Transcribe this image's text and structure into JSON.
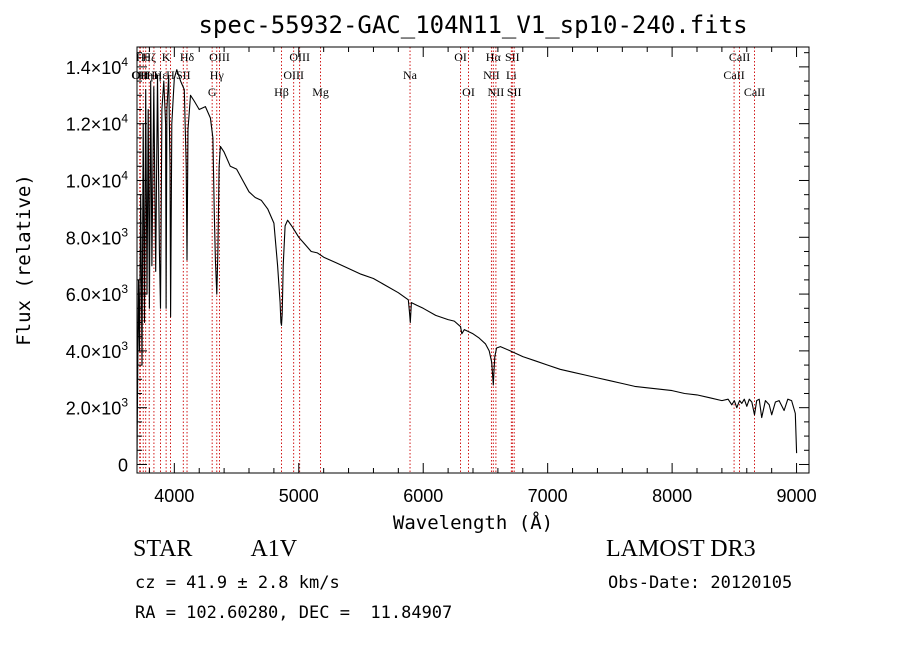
{
  "chart_data": {
    "type": "line",
    "title": "spec-55932-GAC_104N11_V1_sp10-240.fits",
    "xlabel": "Wavelength (Å)",
    "ylabel": "Flux (relative)",
    "xlim": [
      3700,
      9100
    ],
    "ylim": [
      -300,
      14700
    ],
    "x_ticks": [
      4000,
      5000,
      6000,
      7000,
      8000,
      9000
    ],
    "x_tick_labels": [
      "4000",
      "5000",
      "6000",
      "7000",
      "8000",
      "9000"
    ],
    "y_ticks": [
      0,
      2000,
      4000,
      6000,
      8000,
      10000,
      12000,
      14000
    ],
    "y_tick_labels": [
      {
        "mant": "0",
        "exp": ""
      },
      {
        "mant": "2.0×10",
        "exp": "3"
      },
      {
        "mant": "4.0×10",
        "exp": "3"
      },
      {
        "mant": "6.0×10",
        "exp": "3"
      },
      {
        "mant": "8.0×10",
        "exp": "3"
      },
      {
        "mant": "1.0×10",
        "exp": "4"
      },
      {
        "mant": "1.2×10",
        "exp": "4"
      },
      {
        "mant": "1.4×10",
        "exp": "4"
      }
    ],
    "series": [
      {
        "name": "spectrum",
        "x": [
          3700,
          3705,
          3712,
          3720,
          3730,
          3740,
          3750,
          3760,
          3770,
          3780,
          3790,
          3800,
          3810,
          3820,
          3835,
          3850,
          3865,
          3880,
          3889,
          3900,
          3915,
          3930,
          3934,
          3940,
          3955,
          3965,
          3970,
          3980,
          4000,
          4020,
          4050,
          4080,
          4095,
          4102,
          4110,
          4130,
          4160,
          4200,
          4250,
          4290,
          4310,
          4320,
          4330,
          4341,
          4350,
          4360,
          4370,
          4400,
          4450,
          4500,
          4550,
          4600,
          4650,
          4700,
          4750,
          4800,
          4830,
          4850,
          4856,
          4861,
          4867,
          4875,
          4890,
          4910,
          4950,
          5000,
          5050,
          5100,
          5150,
          5200,
          5300,
          5400,
          5500,
          5600,
          5700,
          5800,
          5880,
          5890,
          5896,
          5905,
          5950,
          6000,
          6100,
          6200,
          6250,
          6300,
          6310,
          6330,
          6400,
          6450,
          6500,
          6530,
          6550,
          6560,
          6563,
          6566,
          6575,
          6590,
          6620,
          6700,
          6800,
          6900,
          7000,
          7100,
          7200,
          7300,
          7400,
          7500,
          7600,
          7700,
          7800,
          7900,
          8000,
          8100,
          8200,
          8300,
          8400,
          8450,
          8480,
          8500,
          8520,
          8542,
          8560,
          8580,
          8600,
          8620,
          8640,
          8662,
          8680,
          8700,
          8720,
          8750,
          8780,
          8800,
          8830,
          8860,
          8900,
          8930,
          8960,
          8990,
          9000
        ],
        "y": [
          200,
          2800,
          6500,
          4000,
          9500,
          3500,
          12000,
          5000,
          13200,
          6000,
          12500,
          5500,
          13500,
          7000,
          13300,
          6800,
          13700,
          7500,
          5500,
          12500,
          13500,
          12000,
          5500,
          12500,
          13700,
          10500,
          5200,
          12000,
          13600,
          13900,
          13500,
          13200,
          10500,
          7200,
          11800,
          13000,
          12800,
          12500,
          12600,
          12200,
          11500,
          9000,
          7200,
          6000,
          7500,
          10500,
          11200,
          11000,
          10500,
          10400,
          10000,
          9600,
          9400,
          9300,
          9000,
          8500,
          7000,
          5700,
          5000,
          4900,
          5300,
          7000,
          8400,
          8600,
          8350,
          8000,
          7750,
          7500,
          7450,
          7300,
          7100,
          6900,
          6700,
          6550,
          6300,
          6050,
          5800,
          5350,
          5000,
          5700,
          5600,
          5500,
          5250,
          5100,
          5050,
          4850,
          4600,
          4750,
          4600,
          4450,
          4250,
          4000,
          3600,
          3000,
          2800,
          3100,
          3800,
          4100,
          4150,
          4000,
          3800,
          3650,
          3500,
          3350,
          3250,
          3150,
          3050,
          2950,
          2850,
          2750,
          2700,
          2650,
          2600,
          2500,
          2450,
          2350,
          2250,
          2300,
          2100,
          2250,
          2000,
          2250,
          2150,
          2300,
          2050,
          2300,
          2200,
          1750,
          2250,
          2300,
          1650,
          2250,
          2100,
          1750,
          2200,
          2250,
          1900,
          2300,
          2250,
          1800,
          400
        ]
      }
    ],
    "lines": [
      {
        "wave": 3722,
        "label": "OII",
        "row": 2
      },
      {
        "wave": 3727,
        "label": "OII",
        "row": 2
      },
      {
        "wave": 3750,
        "label": "Hθ",
        "row": 1
      },
      {
        "wave": 3770,
        "label": "Hη",
        "row": 2
      },
      {
        "wave": 3798,
        "label": "Hζ",
        "row": 1
      },
      {
        "wave": 3836,
        "label": "Hη",
        "row": 2
      },
      {
        "wave": 3889,
        "label": "Hε",
        "row": 2
      },
      {
        "wave": 3934,
        "label": "K",
        "row": 1
      },
      {
        "wave": 3969,
        "label": "H",
        "row": 2
      },
      {
        "wave": 4072,
        "label": "SII",
        "row": 2
      },
      {
        "wave": 4102,
        "label": "Hδ",
        "row": 1
      },
      {
        "wave": 4304,
        "label": "G",
        "row": 3
      },
      {
        "wave": 4341,
        "label": "Hγ",
        "row": 2
      },
      {
        "wave": 4363,
        "label": "OIII",
        "row": 1
      },
      {
        "wave": 4861,
        "label": "Hβ",
        "row": 3
      },
      {
        "wave": 4959,
        "label": "OIII",
        "row": 2
      },
      {
        "wave": 5007,
        "label": "OIII",
        "row": 1
      },
      {
        "wave": 5175,
        "label": "Mg",
        "row": 3
      },
      {
        "wave": 5894,
        "label": "Na",
        "row": 2
      },
      {
        "wave": 6300,
        "label": "OI",
        "row": 1
      },
      {
        "wave": 6364,
        "label": "OI",
        "row": 3
      },
      {
        "wave": 6548,
        "label": "NII",
        "row": 2
      },
      {
        "wave": 6563,
        "label": "Hα",
        "row": 1
      },
      {
        "wave": 6584,
        "label": "NII",
        "row": 3
      },
      {
        "wave": 6708,
        "label": "Li",
        "row": 2
      },
      {
        "wave": 6716,
        "label": "SII",
        "row": 1
      },
      {
        "wave": 6731,
        "label": "SII",
        "row": 3
      },
      {
        "wave": 8498,
        "label": "CaII",
        "row": 2
      },
      {
        "wave": 8542,
        "label": "CaII",
        "row": 1
      },
      {
        "wave": 8662,
        "label": "CaII",
        "row": 3
      }
    ]
  },
  "info": {
    "class_label": "STAR",
    "subclass": "A1V",
    "survey": "LAMOST DR3",
    "cz": "cz = 41.9 ± 2.8 km/s",
    "obs_date": "Obs-Date: 20120105",
    "coords": "RA = 102.60280, DEC =  11.84907"
  },
  "colors": {
    "line_marker": "#cc0000",
    "spectrum": "#000000"
  }
}
